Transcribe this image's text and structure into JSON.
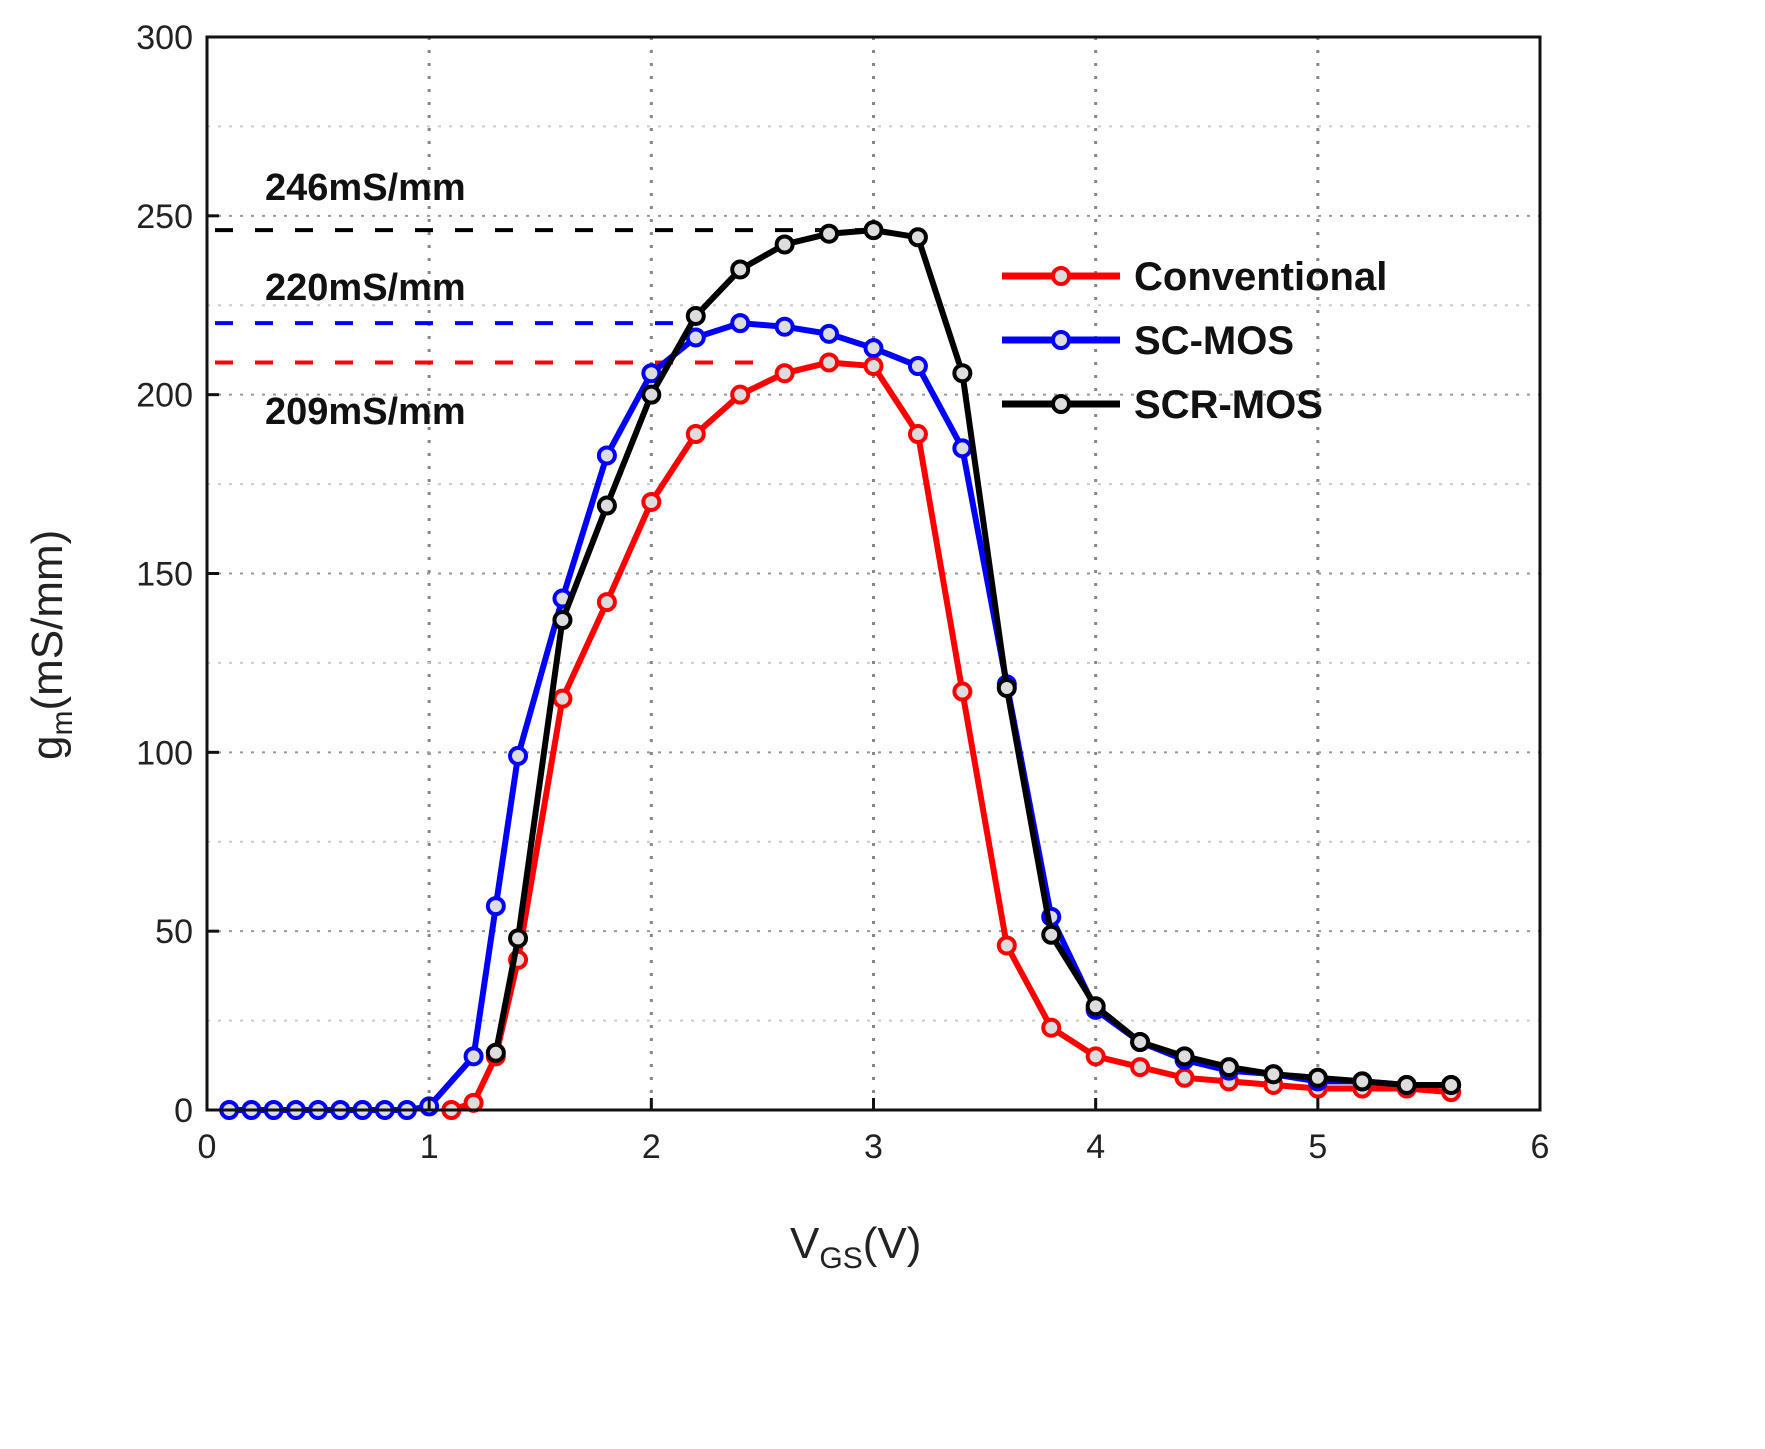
{
  "chart_data": {
    "type": "line",
    "title": "",
    "xlabel": "V_GS(V)",
    "xlabel_main": "V",
    "xlabel_sub": "GS",
    "xlabel_unit": "(V)",
    "ylabel": "g_m(mS/mm)",
    "ylabel_main": "g",
    "ylabel_sub": "m",
    "ylabel_unit": "(mS/mm)",
    "xlim": [
      0,
      6
    ],
    "ylim": [
      0,
      300
    ],
    "xticks": [
      "0",
      "1",
      "2",
      "3",
      "4",
      "5",
      "6"
    ],
    "yticks": [
      "0",
      "50",
      "100",
      "150",
      "200",
      "250",
      "300"
    ],
    "grid": true,
    "legend_position": "top-right",
    "series": [
      {
        "name": "Conventional",
        "color": "#ff0000",
        "x": [
          1.1,
          1.2,
          1.3,
          1.4,
          1.6,
          1.8,
          2.0,
          2.2,
          2.4,
          2.6,
          2.8,
          3.0,
          3.2,
          3.4,
          3.6,
          3.8,
          4.0,
          4.2,
          4.4,
          4.6,
          4.8,
          5.0,
          5.2,
          5.4,
          5.6
        ],
        "y": [
          0,
          2,
          15,
          42,
          115,
          142,
          170,
          189,
          200,
          206,
          209,
          208,
          189,
          117,
          46,
          23,
          15,
          12,
          9,
          8,
          7,
          6,
          6,
          6,
          5
        ]
      },
      {
        "name": "SC-MOS",
        "color": "#0000ff",
        "x": [
          0.1,
          0.2,
          0.3,
          0.4,
          0.5,
          0.6,
          0.7,
          0.8,
          0.9,
          1.0,
          1.2,
          1.3,
          1.4,
          1.6,
          1.8,
          2.0,
          2.2,
          2.4,
          2.6,
          2.8,
          3.0,
          3.2,
          3.4,
          3.6,
          3.8,
          4.0,
          4.2,
          4.4,
          4.6,
          4.8,
          5.0,
          5.2,
          5.4,
          5.6
        ],
        "y": [
          0,
          0,
          0,
          0,
          0,
          0,
          0,
          0,
          0,
          1,
          15,
          57,
          99,
          143,
          183,
          206,
          216,
          220,
          219,
          217,
          213,
          208,
          185,
          119,
          54,
          28,
          19,
          14,
          11,
          10,
          8,
          8,
          7,
          7
        ]
      },
      {
        "name": "SCR-MOS",
        "color": "#000000",
        "x": [
          1.3,
          1.4,
          1.6,
          1.8,
          2.0,
          2.2,
          2.4,
          2.6,
          2.8,
          3.0,
          3.2,
          3.4,
          3.6,
          3.8,
          4.0,
          4.2,
          4.4,
          4.6,
          4.8,
          5.0,
          5.2,
          5.4,
          5.6
        ],
        "y": [
          16,
          48,
          137,
          169,
          200,
          222,
          235,
          242,
          245,
          246,
          244,
          206,
          118,
          49,
          29,
          19,
          15,
          12,
          10,
          9,
          8,
          7,
          7
        ]
      }
    ],
    "annotations": [
      {
        "text": "246mS/mm",
        "value": 246,
        "color": "#000000",
        "line_to_x": 3.0
      },
      {
        "text": "220mS/mm",
        "value": 220,
        "color": "#0000ff",
        "line_to_x": 2.2
      },
      {
        "text": "209mS/mm",
        "value": 209,
        "color": "#ff0000",
        "line_to_x": 2.5
      }
    ]
  }
}
